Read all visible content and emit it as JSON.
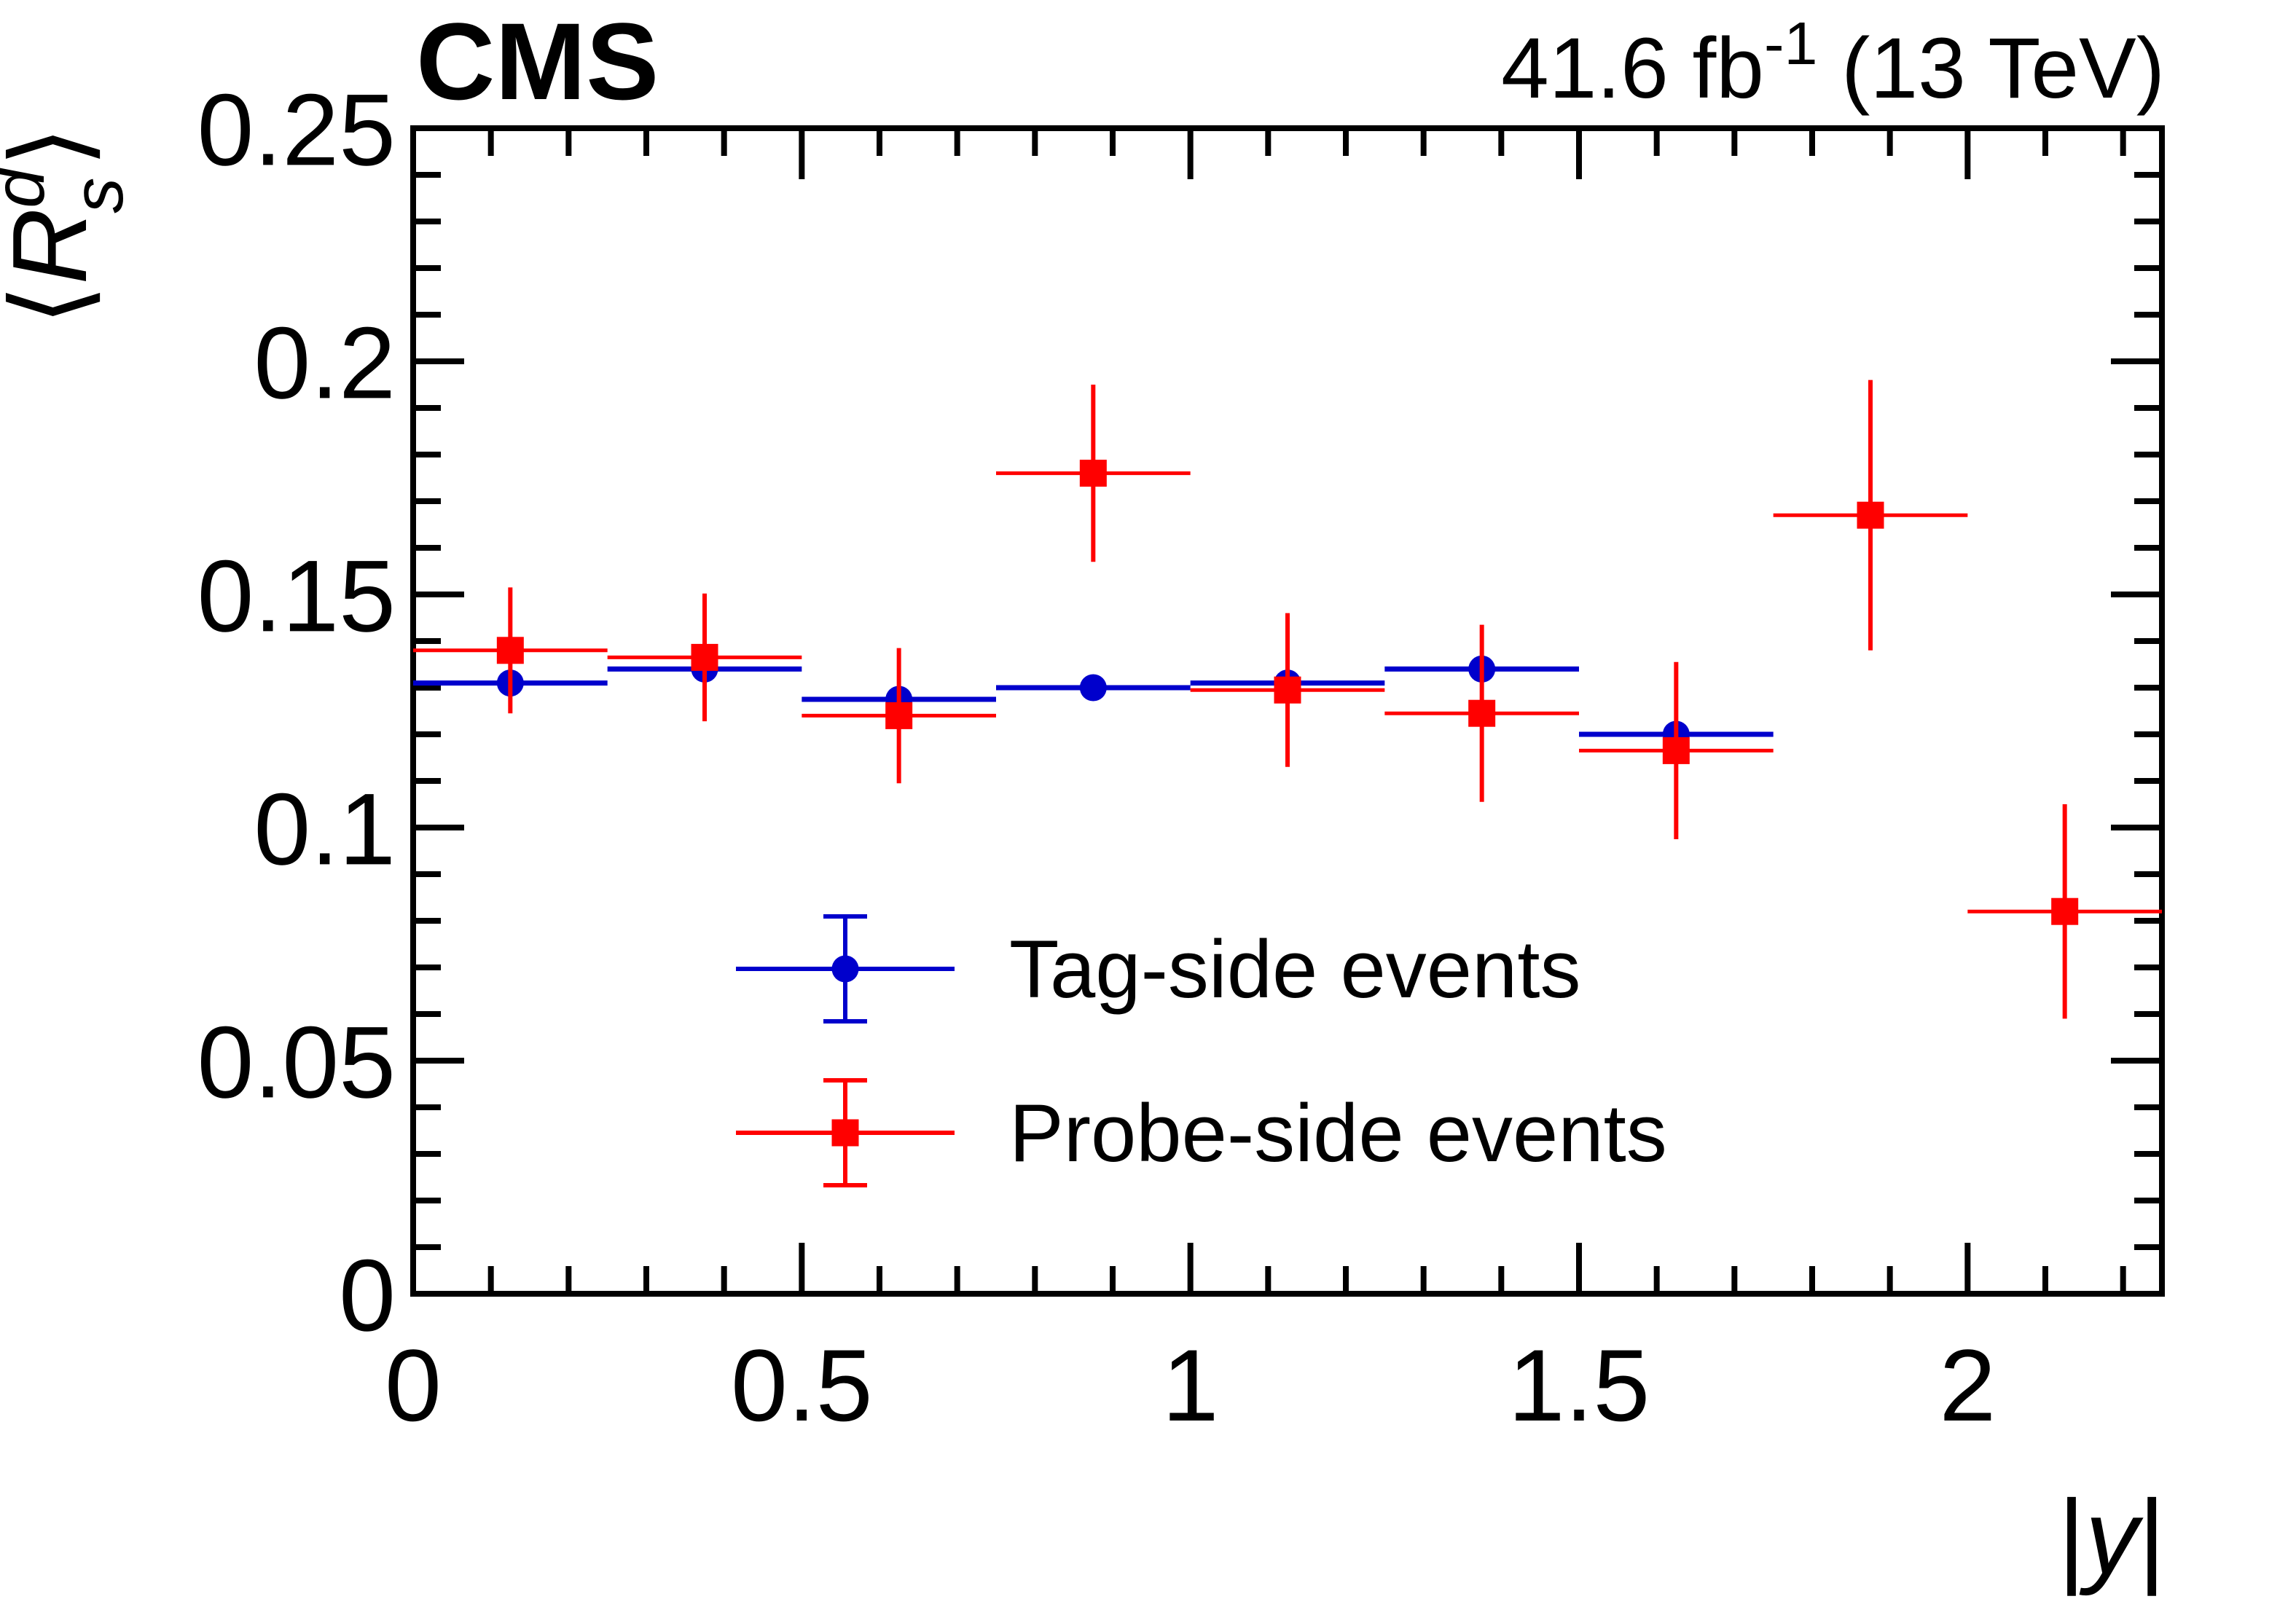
{
  "header": {
    "experiment": "CMS",
    "lumi_prefix": "41.6 fb",
    "lumi_sup": "-1",
    "lumi_suffix": " (13 TeV)"
  },
  "axes": {
    "x": {
      "label": "|y|",
      "label_open_bar": "|",
      "label_letter": "y",
      "label_close_bar": "|",
      "min": 0,
      "max": 2.25,
      "major_ticks": [
        0,
        0.5,
        1,
        1.5,
        2
      ],
      "tick_labels": [
        "0",
        "0.5",
        "1",
        "1.5",
        "2"
      ],
      "minor_step": 0.1
    },
    "y": {
      "label_open": "⟨",
      "label_main": "R",
      "label_sup": "d",
      "label_sub": "s",
      "label_close": "⟩",
      "min": 0,
      "max": 0.25,
      "major_ticks": [
        0,
        0.05,
        0.1,
        0.15,
        0.2,
        0.25
      ],
      "tick_labels": [
        "0",
        "0.05",
        "0.1",
        "0.15",
        "0.2",
        "0.25"
      ],
      "minor_step": 0.01
    }
  },
  "legend": {
    "entries": [
      {
        "label": "Tag-side events",
        "color": "#0000cc",
        "marker": "circle"
      },
      {
        "label": "Probe-side events",
        "color": "#ff0000",
        "marker": "square"
      }
    ]
  },
  "chart_data": {
    "type": "scatter",
    "title": "",
    "xlabel": "|y|",
    "ylabel": "<R_s^d>",
    "xlim": [
      0,
      2.25
    ],
    "ylim": [
      0,
      0.25
    ],
    "grid": false,
    "legend_position": "center",
    "bin_half_width": 0.125,
    "series": [
      {
        "name": "Tag-side events",
        "color": "#0000cc",
        "marker": "circle",
        "points": [
          {
            "x": 0.125,
            "y": 0.131,
            "ex": 0.125,
            "ey": 0.0
          },
          {
            "x": 0.375,
            "y": 0.134,
            "ex": 0.125,
            "ey": 0.0
          },
          {
            "x": 0.625,
            "y": 0.1275,
            "ex": 0.125,
            "ey": 0.0
          },
          {
            "x": 0.875,
            "y": 0.13,
            "ex": 0.125,
            "ey": 0.0
          },
          {
            "x": 1.125,
            "y": 0.131,
            "ex": 0.125,
            "ey": 0.0
          },
          {
            "x": 1.375,
            "y": 0.134,
            "ex": 0.125,
            "ey": 0.0
          },
          {
            "x": 1.625,
            "y": 0.12,
            "ex": 0.125,
            "ey": 0.0
          }
        ]
      },
      {
        "name": "Probe-side events",
        "color": "#ff0000",
        "marker": "square",
        "points": [
          {
            "x": 0.125,
            "y": 0.138,
            "ex": 0.125,
            "ey": 0.0135
          },
          {
            "x": 0.375,
            "y": 0.1365,
            "ex": 0.125,
            "ey": 0.0137
          },
          {
            "x": 0.625,
            "y": 0.124,
            "ex": 0.125,
            "ey": 0.0145
          },
          {
            "x": 0.875,
            "y": 0.176,
            "ex": 0.125,
            "ey": 0.019
          },
          {
            "x": 1.125,
            "y": 0.1295,
            "ex": 0.125,
            "ey": 0.0165
          },
          {
            "x": 1.375,
            "y": 0.1245,
            "ex": 0.125,
            "ey": 0.019
          },
          {
            "x": 1.625,
            "y": 0.1165,
            "ex": 0.125,
            "ey": 0.019
          },
          {
            "x": 1.875,
            "y": 0.167,
            "ex": 0.125,
            "ey": 0.029
          },
          {
            "x": 2.125,
            "y": 0.082,
            "ex": 0.125,
            "ey": 0.023
          }
        ]
      }
    ]
  }
}
